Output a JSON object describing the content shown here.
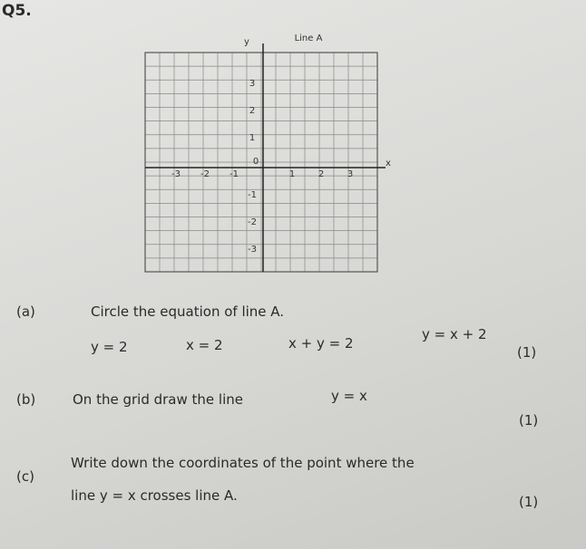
{
  "question": {
    "number": "Q5."
  },
  "grid": {
    "y_axis_label": "y",
    "x_axis_label": "x",
    "line_label": "Line A",
    "x_tick_labels": [
      "-3",
      "-2",
      "-1",
      "1",
      "2",
      "3"
    ],
    "y_tick_labels": [
      "3",
      "2",
      "1",
      "-1",
      "-2",
      "-3"
    ],
    "origin_label": "0"
  },
  "parts": [
    {
      "label": "(a)",
      "text": "Circle the equation of line A.",
      "options": [
        "y = 2",
        "x = 2",
        "x + y = 2",
        "y = x + 2"
      ],
      "marks": "(1)"
    },
    {
      "label": "(b)",
      "text": "On the grid draw the line",
      "equation": "y = x",
      "marks": "(1)"
    },
    {
      "label": "(c)",
      "text": "Write down the coordinates of the point where the",
      "text_line2": "line y = x crosses line A.",
      "marks": "(1)"
    }
  ]
}
